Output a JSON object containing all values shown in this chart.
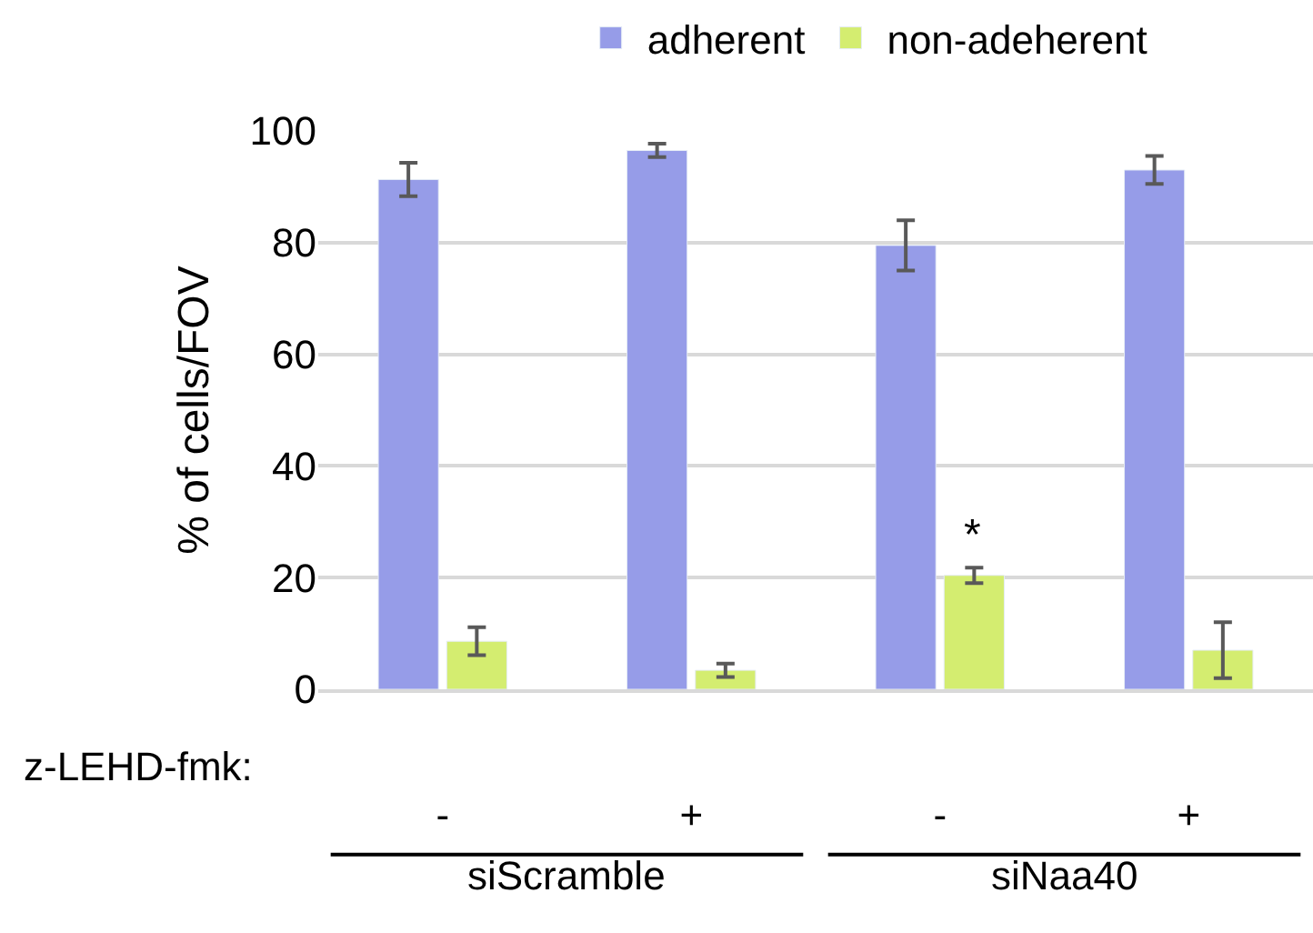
{
  "chart_data": {
    "type": "bar",
    "ylabel": "% of cells/FOV",
    "categories": [
      "-",
      "+",
      "-",
      "+"
    ],
    "series": [
      {
        "name": "adherent",
        "color": "#969ce8",
        "values": [
          91.3,
          96.5,
          79.5,
          93
        ],
        "errors": [
          3,
          1.2,
          4.5,
          2.5
        ]
      },
      {
        "name": "non-adeherent",
        "color": "#d4ed70",
        "values": [
          8.6,
          3.4,
          20.4,
          7
        ],
        "errors": [
          2.5,
          1.2,
          1.4,
          5
        ],
        "value_labels": [
          null,
          null,
          "*",
          null
        ]
      }
    ],
    "annotations": [
      "z-LEHD-fmk:",
      "siScramble",
      "siNaa40"
    ],
    "ylim": [
      0,
      100
    ],
    "yticks": [
      0,
      20,
      40,
      60,
      80,
      100
    ],
    "grid": "y",
    "legend": "top"
  }
}
